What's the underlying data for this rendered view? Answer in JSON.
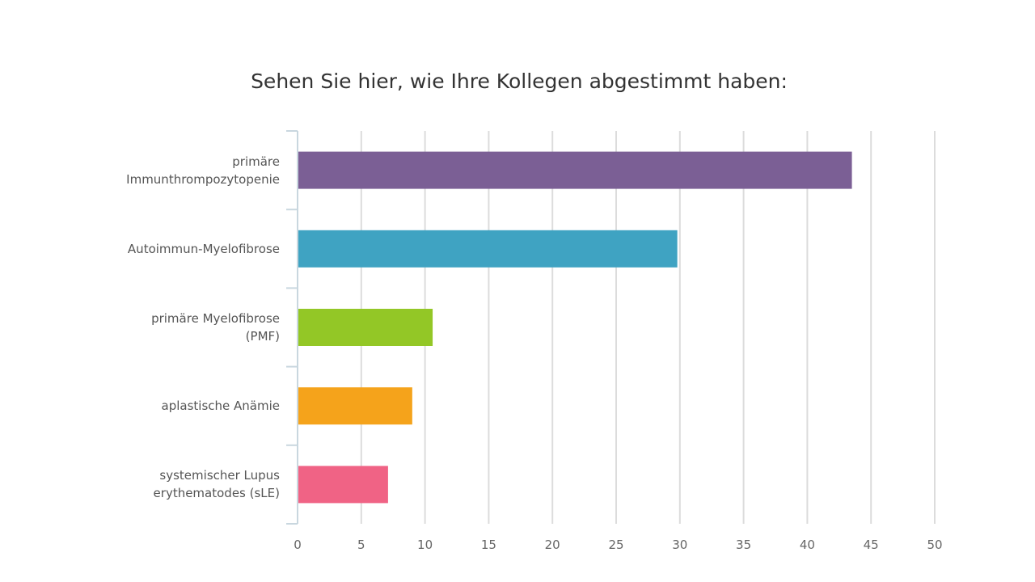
{
  "chart_data": {
    "type": "bar",
    "orientation": "horizontal",
    "title": "Sehen Sie hier, wie Ihre Kollegen abgestimmt haben:",
    "xlabel": "",
    "ylabel": "",
    "xlim": [
      0,
      50
    ],
    "ticks": [
      "0",
      "5",
      "10",
      "15",
      "20",
      "25",
      "30",
      "35",
      "40",
      "45",
      "50"
    ],
    "grid": true,
    "legend": "none",
    "categories": [
      [
        "primäre",
        "Immunthrompozytopenie"
      ],
      [
        "Autoimmun-Myelofibrose"
      ],
      [
        "primäre Myelofibrose",
        "(PMF)"
      ],
      [
        "aplastische Anämie"
      ],
      [
        "systemischer Lupus",
        "erythematodes (sLE)"
      ]
    ],
    "values": [
      43.5,
      29.8,
      10.6,
      9.0,
      7.1
    ],
    "colors": [
      "#7b5f95",
      "#3fa3c2",
      "#93c726",
      "#f5a31b",
      "#f06385"
    ]
  }
}
